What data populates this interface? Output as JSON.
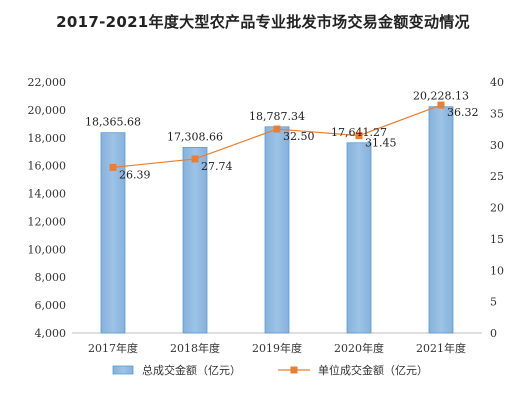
{
  "chart_data": {
    "type": "bar",
    "title": "2017-2021年度大型农产品专业批发市场交易金额变动情况",
    "categories": [
      "2017年度",
      "2018年度",
      "2019年度",
      "2020年度",
      "2021年度"
    ],
    "series": [
      {
        "name": "总成交金额（亿元）",
        "type": "bar",
        "axis": "left",
        "values": [
          18365.68,
          17308.66,
          18787.34,
          17641.27,
          20228.13
        ],
        "labels": [
          "18,365.68",
          "17,308.66",
          "18,787.34",
          "17,641.27",
          "20,228.13"
        ],
        "color": "#9dc3e6"
      },
      {
        "name": "单位成交金额（亿元）",
        "type": "line",
        "axis": "right",
        "values": [
          26.39,
          27.74,
          32.5,
          31.45,
          36.32
        ],
        "labels": [
          "26.39",
          "27.74",
          "32.50",
          "31.45",
          "36.32"
        ],
        "color": "#ed7d31"
      }
    ],
    "y_left": {
      "range": [
        4000,
        22000
      ],
      "ticks": [
        4000,
        6000,
        8000,
        10000,
        12000,
        14000,
        16000,
        18000,
        20000,
        22000
      ],
      "tick_labels": [
        "4,000",
        "6,000",
        "8,000",
        "10,000",
        "12,000",
        "14,000",
        "16,000",
        "18,000",
        "20,000",
        "22,000"
      ]
    },
    "y_right": {
      "range": [
        0,
        40
      ],
      "ticks": [
        0,
        5,
        10,
        15,
        20,
        25,
        30,
        35,
        40
      ],
      "tick_labels": [
        "0",
        "5",
        "10",
        "15",
        "20",
        "25",
        "30",
        "35",
        "40"
      ]
    },
    "grid": false,
    "legend": "bottom"
  }
}
